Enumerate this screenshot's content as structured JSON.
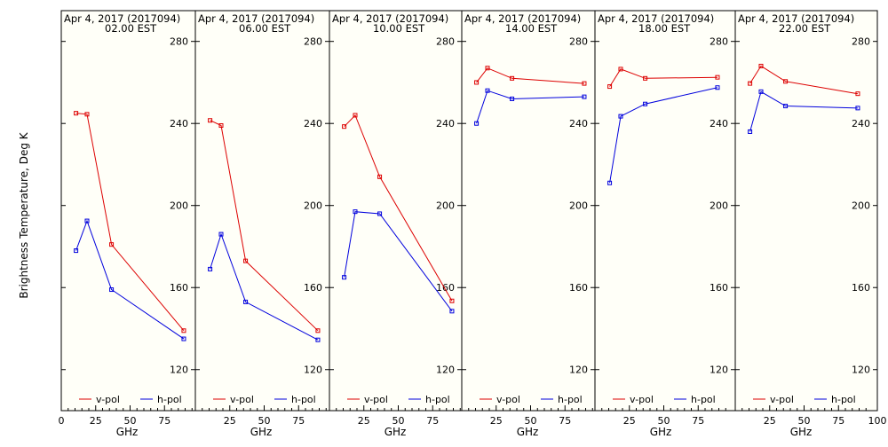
{
  "figure": {
    "ylabel": "Brightness Temperature, Deg K",
    "xlabel": "GHz",
    "colors": {
      "v_pol": "#dd0000",
      "h_pol": "#0000dd",
      "background": "#fffff8"
    }
  },
  "chart_data": [
    {
      "type": "line",
      "title": "Apr  4, 2017 (2017094)",
      "subtitle": "02.00 EST",
      "xlabel": "GHz",
      "ylabel": "Brightness Temperature, Deg K",
      "xlim": [
        0,
        100
      ],
      "ylim": [
        100,
        295
      ],
      "x_ticks": [
        "0",
        "25",
        "50",
        "75"
      ],
      "y_ticks": [
        "120",
        "160",
        "200",
        "240",
        "280"
      ],
      "legend": "bottom",
      "series": [
        {
          "name": "v-pol",
          "color": "#dd0000",
          "x": [
            10.7,
            18.7,
            36.5,
            89.0
          ],
          "y": [
            245,
            244.5,
            181,
            139
          ]
        },
        {
          "name": "h-pol",
          "color": "#0000dd",
          "x": [
            10.7,
            18.7,
            36.5,
            89.0
          ],
          "y": [
            178,
            192.5,
            159,
            135
          ]
        }
      ]
    },
    {
      "type": "line",
      "title": "Apr  4, 2017 (2017094)",
      "subtitle": "06.00 EST",
      "xlabel": "GHz",
      "xlim": [
        0,
        100
      ],
      "ylim": [
        100,
        295
      ],
      "x_ticks": [
        "25",
        "50",
        "75"
      ],
      "y_ticks": [
        "120",
        "160",
        "200",
        "240",
        "280"
      ],
      "legend": "bottom",
      "series": [
        {
          "name": "v-pol",
          "color": "#dd0000",
          "x": [
            10.7,
            18.7,
            36.5,
            89.0
          ],
          "y": [
            241.5,
            239,
            173,
            139
          ]
        },
        {
          "name": "h-pol",
          "color": "#0000dd",
          "x": [
            10.7,
            18.7,
            36.5,
            89.0
          ],
          "y": [
            169,
            186,
            153,
            134.5
          ]
        }
      ]
    },
    {
      "type": "line",
      "title": "Apr  4, 2017 (2017094)",
      "subtitle": "10.00 EST",
      "xlabel": "GHz",
      "xlim": [
        0,
        100
      ],
      "ylim": [
        100,
        295
      ],
      "x_ticks": [
        "25",
        "50",
        "75"
      ],
      "y_ticks": [
        "120",
        "160",
        "200",
        "240",
        "280"
      ],
      "legend": "bottom",
      "series": [
        {
          "name": "v-pol",
          "color": "#dd0000",
          "x": [
            10.7,
            18.7,
            36.5,
            89.0
          ],
          "y": [
            238.5,
            244,
            214,
            153.5
          ]
        },
        {
          "name": "h-pol",
          "color": "#0000dd",
          "x": [
            10.7,
            18.7,
            36.5,
            89.0
          ],
          "y": [
            165,
            197,
            196,
            148.5
          ]
        }
      ]
    },
    {
      "type": "line",
      "title": "Apr  4, 2017 (2017094)",
      "subtitle": "14.00 EST",
      "xlabel": "GHz",
      "xlim": [
        0,
        100
      ],
      "ylim": [
        100,
        295
      ],
      "x_ticks": [
        "25",
        "50",
        "75"
      ],
      "y_ticks": [
        "120",
        "160",
        "200",
        "240",
        "280"
      ],
      "legend": "bottom",
      "series": [
        {
          "name": "v-pol",
          "color": "#dd0000",
          "x": [
            10.7,
            18.7,
            36.5,
            89.0
          ],
          "y": [
            260,
            267,
            262,
            259.5
          ]
        },
        {
          "name": "h-pol",
          "color": "#0000dd",
          "x": [
            10.7,
            18.7,
            36.5,
            89.0
          ],
          "y": [
            240,
            256,
            252,
            253
          ]
        }
      ]
    },
    {
      "type": "line",
      "title": "Apr  4, 2017 (2017094)",
      "subtitle": "18.00 EST",
      "xlabel": "GHz",
      "xlim": [
        0,
        100
      ],
      "ylim": [
        100,
        295
      ],
      "x_ticks": [
        "25",
        "50",
        "75"
      ],
      "y_ticks": [
        "120",
        "160",
        "200",
        "240",
        "280"
      ],
      "legend": "bottom",
      "series": [
        {
          "name": "v-pol",
          "color": "#dd0000",
          "x": [
            10.7,
            18.7,
            36.5,
            89.0
          ],
          "y": [
            258,
            266.5,
            262,
            262.5
          ]
        },
        {
          "name": "h-pol",
          "color": "#0000dd",
          "x": [
            10.7,
            18.7,
            36.5,
            89.0
          ],
          "y": [
            211,
            243.5,
            249.5,
            257.5
          ]
        }
      ]
    },
    {
      "type": "line",
      "title": "Apr  4, 2017 (2017094)",
      "subtitle": "22.00 EST",
      "xlabel": "GHz",
      "xlim": [
        0,
        100
      ],
      "ylim": [
        100,
        295
      ],
      "x_ticks": [
        "25",
        "50",
        "75",
        "100"
      ],
      "y_ticks": [
        "120",
        "160",
        "200",
        "240",
        "280"
      ],
      "legend": "bottom",
      "series": [
        {
          "name": "v-pol",
          "color": "#dd0000",
          "x": [
            10.7,
            18.7,
            36.5,
            89.0
          ],
          "y": [
            259.5,
            268,
            260.5,
            254.5
          ]
        },
        {
          "name": "h-pol",
          "color": "#0000dd",
          "x": [
            10.7,
            18.7,
            36.5,
            89.0
          ],
          "y": [
            236,
            255.5,
            248.5,
            247.5
          ]
        }
      ]
    }
  ]
}
